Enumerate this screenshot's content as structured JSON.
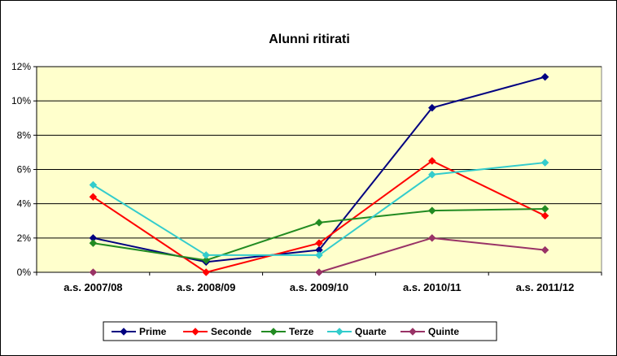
{
  "chart_data": {
    "type": "line",
    "title": "Alunni ritirati",
    "categories": [
      "a.s. 2007/08",
      "a.s. 2008/09",
      "a.s. 2009/10",
      "a.s. 2010/11",
      "a.s. 2011/12"
    ],
    "ylim": [
      0,
      12
    ],
    "yticks": [
      "0%",
      "2%",
      "4%",
      "6%",
      "8%",
      "10%",
      "12%"
    ],
    "grid": true,
    "legend_position": "bottom",
    "plot_background": "#FFFFCC",
    "series": [
      {
        "name": "Prime",
        "color": "#000080",
        "marker": "diamond",
        "values": [
          2.0,
          0.6,
          1.3,
          9.6,
          11.4
        ]
      },
      {
        "name": "Seconde",
        "color": "#FF0000",
        "marker": "diamond",
        "values": [
          4.4,
          0.0,
          1.7,
          6.5,
          3.3
        ]
      },
      {
        "name": "Terze",
        "color": "#228B22",
        "marker": "diamond",
        "values": [
          1.7,
          0.7,
          2.9,
          3.6,
          3.7
        ]
      },
      {
        "name": "Quarte",
        "color": "#33CCCC",
        "marker": "diamond",
        "values": [
          5.1,
          1.0,
          1.0,
          5.7,
          6.4
        ]
      },
      {
        "name": "Quinte",
        "color": "#993366",
        "marker": "diamond",
        "values": [
          0.0,
          null,
          0.0,
          2.0,
          1.3
        ]
      }
    ]
  }
}
